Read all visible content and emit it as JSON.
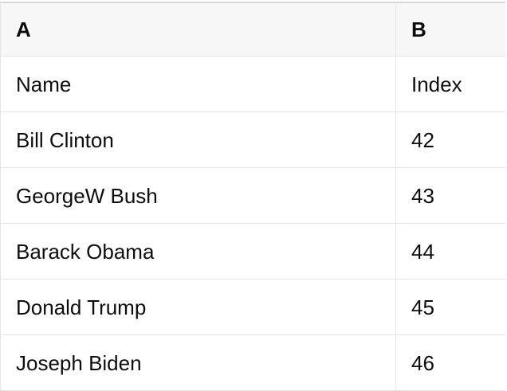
{
  "table": {
    "columns": [
      {
        "id": "A",
        "label": "A"
      },
      {
        "id": "B",
        "label": "B"
      }
    ],
    "rows": [
      [
        "Name",
        "Index"
      ],
      [
        "Bill Clinton",
        "42"
      ],
      [
        "GeorgeW Bush",
        "43"
      ],
      [
        "Barack Obama",
        "44"
      ],
      [
        "Donald Trump",
        "45"
      ],
      [
        "Joseph Biden",
        "46"
      ]
    ]
  },
  "colors": {
    "header_bg": "#f7f7f7",
    "grid_line": "#e4e4e4",
    "top_border": "#d9d9d9",
    "cell_bg": "#ffffff",
    "text": "#0d0d0d"
  }
}
